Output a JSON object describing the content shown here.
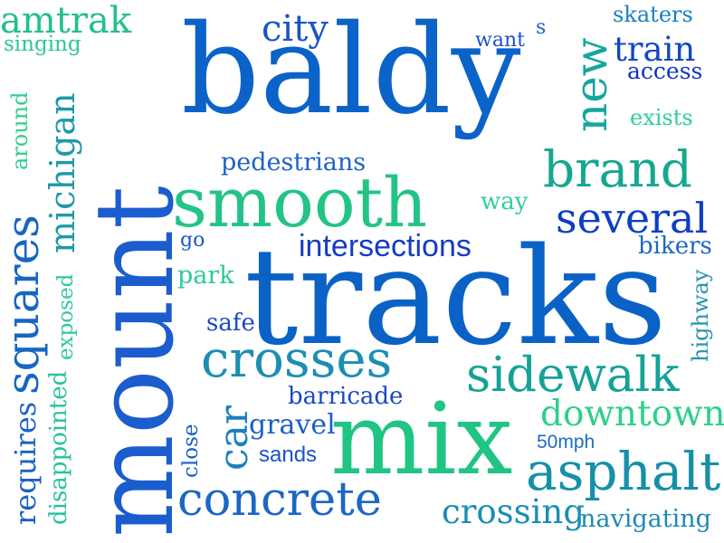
{
  "words": [
    {
      "text": "amtrak",
      "color": "#22c08a"
    },
    {
      "text": "singing",
      "color": "#2ac79a"
    },
    {
      "text": "baldy",
      "color": "#0b63c9"
    },
    {
      "text": "city",
      "color": "#1a52c8"
    },
    {
      "text": "want",
      "color": "#1d4fd0"
    },
    {
      "text": "s",
      "color": "#1c63c4"
    },
    {
      "text": "skaters",
      "color": "#1b7fc2"
    },
    {
      "text": "new",
      "color": "#16a6a0"
    },
    {
      "text": "train",
      "color": "#1247c2"
    },
    {
      "text": "access",
      "color": "#1133c9"
    },
    {
      "text": "exists",
      "color": "#2fcf94"
    },
    {
      "text": "around",
      "color": "#2fcf8f"
    },
    {
      "text": "michigan",
      "color": "#1e9aa8"
    },
    {
      "text": "pedestrians",
      "color": "#1d63c4"
    },
    {
      "text": "brand",
      "color": "#16a78f"
    },
    {
      "text": "smooth",
      "color": "#22c486"
    },
    {
      "text": "way",
      "color": "#2fd095"
    },
    {
      "text": "several",
      "color": "#0d3ec3"
    },
    {
      "text": "squares",
      "color": "#1766c2"
    },
    {
      "text": "intersections",
      "color": "#163bc5"
    },
    {
      "text": "go",
      "color": "#1b58c5"
    },
    {
      "text": "bikers",
      "color": "#1d68c3"
    },
    {
      "text": "park",
      "color": "#2bc99b"
    },
    {
      "text": "mount",
      "color": "#1b5dce"
    },
    {
      "text": "tracks",
      "color": "#0a62c6"
    },
    {
      "text": "highway",
      "color": "#2a93b0"
    },
    {
      "text": "exposed",
      "color": "#2fc8a0"
    },
    {
      "text": "safe",
      "color": "#1d47c9"
    },
    {
      "text": "crosses",
      "color": "#1c8eb3"
    },
    {
      "text": "sidewalk",
      "color": "#16a296"
    },
    {
      "text": "disappointed",
      "color": "#27c39c"
    },
    {
      "text": "barricade",
      "color": "#1848c5"
    },
    {
      "text": "downtown",
      "color": "#2fcf8b"
    },
    {
      "text": "requires",
      "color": "#1961c6"
    },
    {
      "text": "car",
      "color": "#1a7fbb"
    },
    {
      "text": "gravel",
      "color": "#1a5fc4"
    },
    {
      "text": "mix",
      "color": "#20c483"
    },
    {
      "text": "close",
      "color": "#1b5dc9"
    },
    {
      "text": "50mph",
      "color": "#1c6cc3"
    },
    {
      "text": "sands",
      "color": "#1b52c7"
    },
    {
      "text": "asphalt",
      "color": "#1690a8"
    },
    {
      "text": "concrete",
      "color": "#1b67c4"
    },
    {
      "text": "crossing",
      "color": "#1a8db5"
    },
    {
      "text": "navigating",
      "color": "#1c8ab5"
    }
  ]
}
